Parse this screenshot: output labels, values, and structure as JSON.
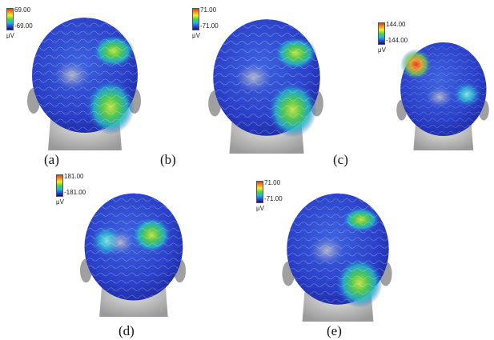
{
  "panels": [
    {
      "label": "(a)",
      "max": "69.00",
      "min": "-69.00",
      "unit": "μV"
    },
    {
      "label": "(b)",
      "max": "71.00",
      "min": "-71.00",
      "unit": "μV"
    },
    {
      "label": "(c)",
      "max": "144.00",
      "min": "-144.00",
      "unit": "μV"
    },
    {
      "label": "(d)",
      "max": "181.00",
      "min": "-181.00",
      "unit": "μV"
    },
    {
      "label": "(e)",
      "max": "71.00",
      "min": "-71.00",
      "unit": "μV"
    }
  ]
}
